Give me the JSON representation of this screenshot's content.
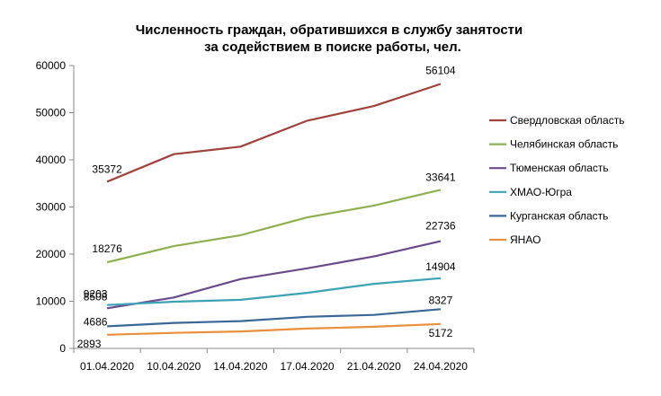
{
  "chart_data": {
    "type": "line",
    "title": [
      "Численность граждан, обратившихся в службу занятости",
      "за содействием в поиске работы, чел."
    ],
    "xlabel": "",
    "ylabel": "",
    "ylim": [
      0,
      60000
    ],
    "yticks": [
      "0",
      "10000",
      "20000",
      "30000",
      "40000",
      "50000",
      "60000"
    ],
    "categories": [
      "01.04.2020",
      "10.04.2020",
      "14.04.2020",
      "17.04.2020",
      "21.04.2020",
      "24.04.2020"
    ],
    "grid": false,
    "legend_position": "right",
    "series": [
      {
        "name": "Свердловская область",
        "color": "#a0413c",
        "values": [
          35372,
          41200,
          42800,
          48300,
          51400,
          56104
        ],
        "labels": {
          "0": "35372",
          "5": "56104"
        }
      },
      {
        "name": "Челябинская область",
        "color": "#8fb050",
        "values": [
          18276,
          21700,
          24000,
          27800,
          30300,
          33641
        ],
        "labels": {
          "0": "18276",
          "5": "33641"
        }
      },
      {
        "name": "Тюменская область",
        "color": "#6b4a8c",
        "values": [
          8508,
          10800,
          14700,
          17000,
          19500,
          22736
        ],
        "labels": {
          "0": "8508",
          "5": "22736"
        }
      },
      {
        "name": "ХМАО-Югра",
        "color": "#3ba3b5",
        "values": [
          9203,
          9900,
          10300,
          11800,
          13700,
          14904
        ],
        "labels": {
          "0": "9203",
          "5": "14904"
        }
      },
      {
        "name": "Курганская область",
        "color": "#3a6896",
        "values": [
          4686,
          5400,
          5800,
          6700,
          7100,
          8327
        ],
        "labels": {
          "0": "4686",
          "5": "8327"
        }
      },
      {
        "name": "ЯНАО",
        "color": "#e8903a",
        "values": [
          2893,
          3300,
          3600,
          4200,
          4600,
          5172
        ],
        "labels": {
          "0": "2893",
          "5": "5172"
        }
      }
    ]
  }
}
